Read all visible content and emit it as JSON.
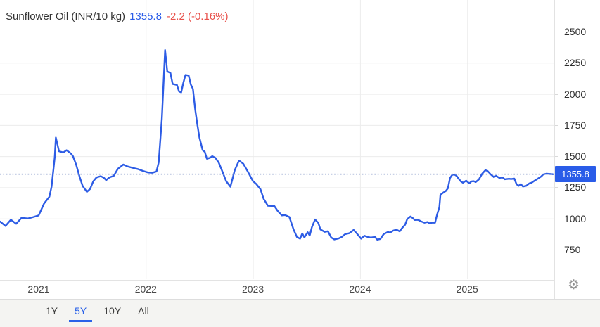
{
  "header": {
    "instrument": "Sunflower Oil (INR/10 kg)",
    "price": "1355.8",
    "change": "-2.2 (-0.16%)"
  },
  "icons": {
    "gear": "⚙"
  },
  "toolbar": {
    "ranges": [
      {
        "label": "1Y",
        "active": false
      },
      {
        "label": "5Y",
        "active": true
      },
      {
        "label": "10Y",
        "active": false
      },
      {
        "label": "All",
        "active": false
      }
    ]
  },
  "colors": {
    "accent_blue": "#2a5ce8",
    "line_blue": "#2d5ce5",
    "change_red": "#e8514b",
    "grid": "#ececec",
    "dotted_line": "#8fa0cc",
    "badge_bg": "#2a5ce8",
    "toolbar_bg": "#f4f4f2",
    "axis_text": "#2e2e2e",
    "gear_gray": "#8f8f8f"
  },
  "chart_data": {
    "type": "line",
    "title": "Sunflower Oil",
    "unit": "INR/10 kg",
    "current_value": 1355.8,
    "change": -2.2,
    "change_pct": "-0.16%",
    "grid": true,
    "legend_position": "none",
    "x_unit": "decimal_year",
    "x_ticks": [
      2021,
      2022,
      2023,
      2024,
      2025
    ],
    "y_ticks": [
      2500,
      2250,
      2000,
      1750,
      1500,
      1250,
      1000,
      750
    ],
    "xlim": [
      2020.64,
      2025.86
    ],
    "ylim": [
      560,
      2750
    ],
    "series": [
      {
        "name": "Sunflower Oil (INR/10 kg)",
        "x": [
          2020.64,
          2020.69,
          2020.74,
          2020.79,
          2020.84,
          2020.9,
          2020.95,
          2021.0,
          2021.05,
          2021.1,
          2021.12,
          2021.15,
          2021.16,
          2021.19,
          2021.23,
          2021.26,
          2021.3,
          2021.32,
          2021.35,
          2021.38,
          2021.41,
          2021.45,
          2021.48,
          2021.51,
          2021.54,
          2021.58,
          2021.61,
          2021.63,
          2021.66,
          2021.7,
          2021.74,
          2021.79,
          2021.83,
          2021.89,
          2021.93,
          2021.98,
          2022.02,
          2022.06,
          2022.1,
          2022.12,
          2022.15,
          2022.18,
          2022.2,
          2022.23,
          2022.25,
          2022.29,
          2022.31,
          2022.33,
          2022.35,
          2022.37,
          2022.4,
          2022.42,
          2022.44,
          2022.46,
          2022.48,
          2022.5,
          2022.53,
          2022.55,
          2022.57,
          2022.6,
          2022.62,
          2022.65,
          2022.68,
          2022.71,
          2022.75,
          2022.79,
          2022.83,
          2022.87,
          2022.91,
          2022.95,
          2023.0,
          2023.03,
          2023.07,
          2023.1,
          2023.14,
          2023.2,
          2023.23,
          2023.27,
          2023.3,
          2023.34,
          2023.38,
          2023.41,
          2023.44,
          2023.46,
          2023.48,
          2023.51,
          2023.53,
          2023.55,
          2023.58,
          2023.61,
          2023.63,
          2023.67,
          2023.7,
          2023.73,
          2023.76,
          2023.8,
          2023.83,
          2023.86,
          2023.9,
          2023.94,
          2023.97,
          2024.01,
          2024.04,
          2024.07,
          2024.1,
          2024.14,
          2024.16,
          2024.19,
          2024.22,
          2024.26,
          2024.28,
          2024.31,
          2024.34,
          2024.37,
          2024.39,
          2024.42,
          2024.44,
          2024.47,
          2024.49,
          2024.51,
          2024.54,
          2024.57,
          2024.6,
          2024.63,
          2024.65,
          2024.67,
          2024.7,
          2024.72,
          2024.74,
          2024.75,
          2024.78,
          2024.8,
          2024.82,
          2024.84,
          2024.86,
          2024.88,
          2024.9,
          2024.92,
          2024.94,
          2024.96,
          2024.99,
          2025.02,
          2025.04,
          2025.06,
          2025.08,
          2025.11,
          2025.14,
          2025.17,
          2025.19,
          2025.22,
          2025.25,
          2025.27,
          2025.3,
          2025.33,
          2025.35,
          2025.39,
          2025.41,
          2025.44,
          2025.46,
          2025.48,
          2025.5,
          2025.52,
          2025.55,
          2025.58,
          2025.6,
          2025.63,
          2025.66,
          2025.69,
          2025.71,
          2025.74,
          2025.77,
          2025.8
        ],
        "values": [
          975,
          940,
          990,
          958,
          1005,
          1000,
          1012,
          1025,
          1120,
          1175,
          1255,
          1490,
          1650,
          1540,
          1530,
          1548,
          1522,
          1500,
          1432,
          1340,
          1262,
          1214,
          1237,
          1300,
          1330,
          1340,
          1326,
          1308,
          1330,
          1342,
          1400,
          1433,
          1418,
          1404,
          1396,
          1380,
          1370,
          1367,
          1378,
          1450,
          1800,
          2352,
          2180,
          2168,
          2080,
          2072,
          2020,
          2012,
          2088,
          2152,
          2148,
          2075,
          2040,
          1880,
          1760,
          1650,
          1550,
          1535,
          1480,
          1488,
          1500,
          1486,
          1450,
          1388,
          1300,
          1255,
          1388,
          1465,
          1440,
          1380,
          1300,
          1278,
          1235,
          1158,
          1102,
          1100,
          1062,
          1025,
          1028,
          1012,
          910,
          853,
          838,
          880,
          848,
          890,
          864,
          930,
          992,
          965,
          912,
          893,
          898,
          848,
          832,
          840,
          853,
          874,
          882,
          908,
          880,
          838,
          862,
          852,
          847,
          852,
          830,
          836,
          875,
          892,
          886,
          903,
          910,
          897,
          921,
          950,
          995,
          1016,
          1005,
          988,
          990,
          977,
          966,
          972,
          960,
          966,
          966,
          1035,
          1090,
          1190,
          1210,
          1220,
          1242,
          1326,
          1350,
          1354,
          1343,
          1320,
          1298,
          1287,
          1304,
          1282,
          1298,
          1300,
          1293,
          1315,
          1360,
          1388,
          1382,
          1354,
          1332,
          1343,
          1326,
          1330,
          1315,
          1319,
          1317,
          1320,
          1276,
          1262,
          1276,
          1257,
          1262,
          1282,
          1287,
          1304,
          1320,
          1337,
          1354,
          1360,
          1358,
          1355.8
        ]
      }
    ]
  }
}
